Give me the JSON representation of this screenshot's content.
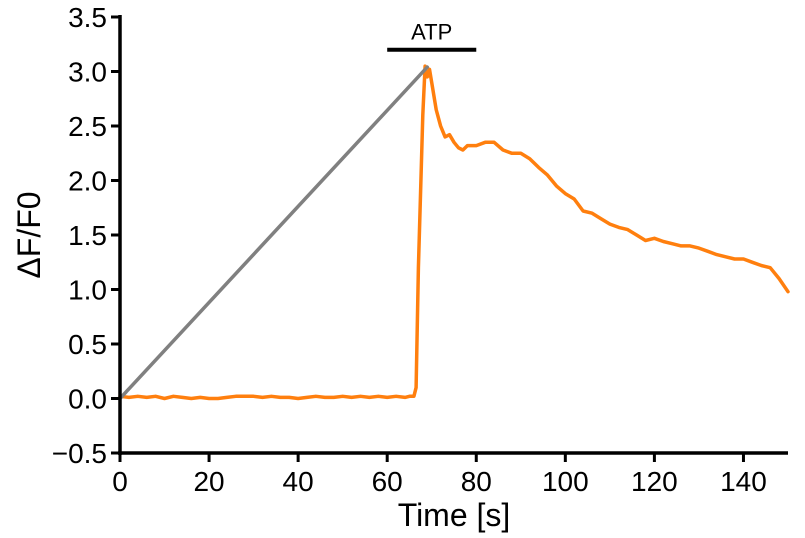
{
  "chart_data": {
    "type": "line",
    "xlabel": "Time [s]",
    "ylabel": "ΔF/F0",
    "xlim": [
      0,
      150
    ],
    "ylim": [
      -0.5,
      3.5
    ],
    "x_ticks": [
      0,
      20,
      40,
      60,
      80,
      100,
      120,
      140
    ],
    "x_tick_labels": [
      "0",
      "20",
      "40",
      "60",
      "80",
      "100",
      "120",
      "140"
    ],
    "y_ticks": [
      -0.5,
      0.0,
      0.5,
      1.0,
      1.5,
      2.0,
      2.5,
      3.0,
      3.5
    ],
    "y_tick_labels": [
      "−0.5",
      "0.0",
      "0.5",
      "1.0",
      "1.5",
      "2.0",
      "2.5",
      "3.0",
      "3.5"
    ],
    "grid": false,
    "series": [
      {
        "color": "#ff7f0e",
        "x": [
          0,
          2,
          4,
          6,
          8,
          10,
          12,
          14,
          16,
          18,
          20,
          22,
          24,
          26,
          28,
          30,
          32,
          34,
          36,
          38,
          40,
          42,
          44,
          46,
          48,
          50,
          52,
          54,
          56,
          58,
          60,
          62,
          64,
          65,
          66,
          66.5,
          67,
          68,
          68.5,
          69,
          69.5,
          70,
          71,
          72,
          73,
          74,
          75,
          76,
          77,
          78,
          80,
          82,
          84,
          86,
          88,
          90,
          92,
          94,
          96,
          98,
          100,
          102,
          104,
          106,
          108,
          110,
          112,
          114,
          116,
          118,
          120,
          122,
          124,
          126,
          128,
          130,
          132,
          134,
          136,
          138,
          140,
          142,
          144,
          146,
          148,
          150
        ],
        "y": [
          0.02,
          0.01,
          0.02,
          0.01,
          0.02,
          0.0,
          0.02,
          0.01,
          0.0,
          0.01,
          0.0,
          0.0,
          0.01,
          0.02,
          0.02,
          0.02,
          0.01,
          0.02,
          0.01,
          0.01,
          0.0,
          0.01,
          0.02,
          0.01,
          0.01,
          0.02,
          0.01,
          0.02,
          0.01,
          0.02,
          0.01,
          0.02,
          0.01,
          0.02,
          0.02,
          0.1,
          1.2,
          2.6,
          3.05,
          2.95,
          3.02,
          2.9,
          2.65,
          2.5,
          2.4,
          2.42,
          2.35,
          2.3,
          2.28,
          2.32,
          2.32,
          2.35,
          2.35,
          2.28,
          2.25,
          2.25,
          2.2,
          2.12,
          2.05,
          1.95,
          1.88,
          1.83,
          1.72,
          1.7,
          1.65,
          1.6,
          1.57,
          1.55,
          1.5,
          1.45,
          1.47,
          1.44,
          1.42,
          1.4,
          1.4,
          1.38,
          1.35,
          1.32,
          1.3,
          1.28,
          1.28,
          1.25,
          1.22,
          1.2,
          1.1,
          0.98
        ]
      },
      {
        "color": "#808080",
        "x": [
          0,
          69
        ],
        "y": [
          0.0,
          3.04
        ]
      }
    ],
    "annotations": [
      {
        "text": "ATP",
        "x_start": 60,
        "x_end": 80,
        "y": 3.2
      }
    ]
  }
}
